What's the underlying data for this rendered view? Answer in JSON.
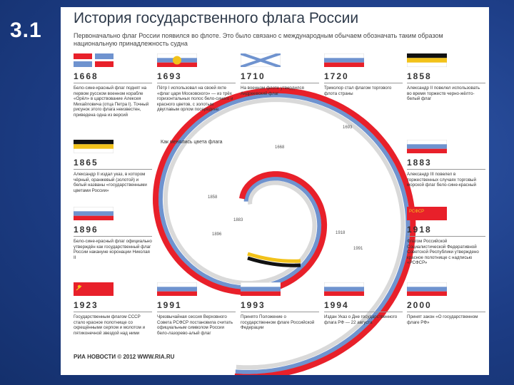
{
  "slide_number": "3.1",
  "poster": {
    "title": "История государственного флага России",
    "subtitle": "Первоначально флаг России появился во флоте. Это было связано с международным обычаем обозначать таким образом национальную принадлежность судна",
    "spiral_label": "Как менялись цвета флага",
    "footer": "РИА НОВОСТИ © 2012 WWW.RIA.RU"
  },
  "colors": {
    "red": "#e8202a",
    "blue": "#6f93cf",
    "white": "#ffffff",
    "black": "#111111",
    "gold": "#f2c21a",
    "grey": "#d9d9d9"
  },
  "entries": [
    {
      "year": "1668",
      "flag": "ship-cross-flag",
      "desc": "Бело-сине-красный флаг поднят на первом русском военном корабле «Орёл» в царствование Алексея Михайловича (отца Петра I). Точный рисунок этого флага неизвестен, приведена одна из версий"
    },
    {
      "year": "1693",
      "flag": "tsar-eagle-tricolor",
      "desc": "Пётр I использовал на своей яхте «флаг царя Московского» — из трёх горизонтальных полос бело-синего и красного цветов, с золотым двуглавым орлом посередине"
    },
    {
      "year": "1710",
      "flag": "st-andrew-flag",
      "desc": "На военном флоте утвердился Андреевский флаг"
    },
    {
      "year": "1720",
      "flag": "white-blue-red",
      "desc": "Триколор стал флагом торгового флота страны"
    },
    {
      "year": "1858",
      "flag": "black-gold-white",
      "desc": "Александр II повелел использовать во время торжеств черно-жёлто-белый флаг"
    },
    {
      "year": "1865",
      "flag": "black-gold-white",
      "desc": "Александр II издал указ, в котором чёрный, оранжевый (золотой) и белый названы «государственными цветами России»"
    },
    {
      "year": "1883",
      "flag": "white-blue-red",
      "desc": "Александр III повелел в торжественных случаях торговый морской флаг бело-сине-красный"
    },
    {
      "year": "1896",
      "flag": "white-blue-red",
      "desc": "Бело-сине-красный флаг официально утверждён как государственный флаг России накануне коронации Николая II"
    },
    {
      "year": "1918",
      "flag": "rsfsr-flag",
      "desc": "Флагом Российской Социалистической Федеративной Советской Республики утверждено красное полотнище с надписью «РСФСР»"
    },
    {
      "year": "1923",
      "flag": "ussr-flag",
      "desc": "Государственным флагом СССР стало красное полотнище со скрещёнными серпом и молотом и пятиконечной звездой над ними"
    },
    {
      "year": "1991",
      "flag": "white-blue-red",
      "desc": "Чрезвычайная сессия Верховного Совета РСФСР постановила считать официальным символом России бело-лазорево-алый флаг"
    },
    {
      "year": "1993",
      "flag": "white-blue-red",
      "desc": "Принято Положение о государственном флаге Российской Федерации"
    },
    {
      "year": "1994",
      "flag": "white-blue-red",
      "desc": "Издан Указ о Дне государственного флага РФ — 22 августа"
    },
    {
      "year": "2000",
      "flag": "white-blue-red",
      "desc": "Принят закон «О государственном флаге РФ»"
    }
  ],
  "spiral_years": [
    "1668",
    "1693",
    "1858",
    "1883",
    "1896",
    "1918",
    "1991"
  ],
  "rsfsr_text": "РСФСР"
}
